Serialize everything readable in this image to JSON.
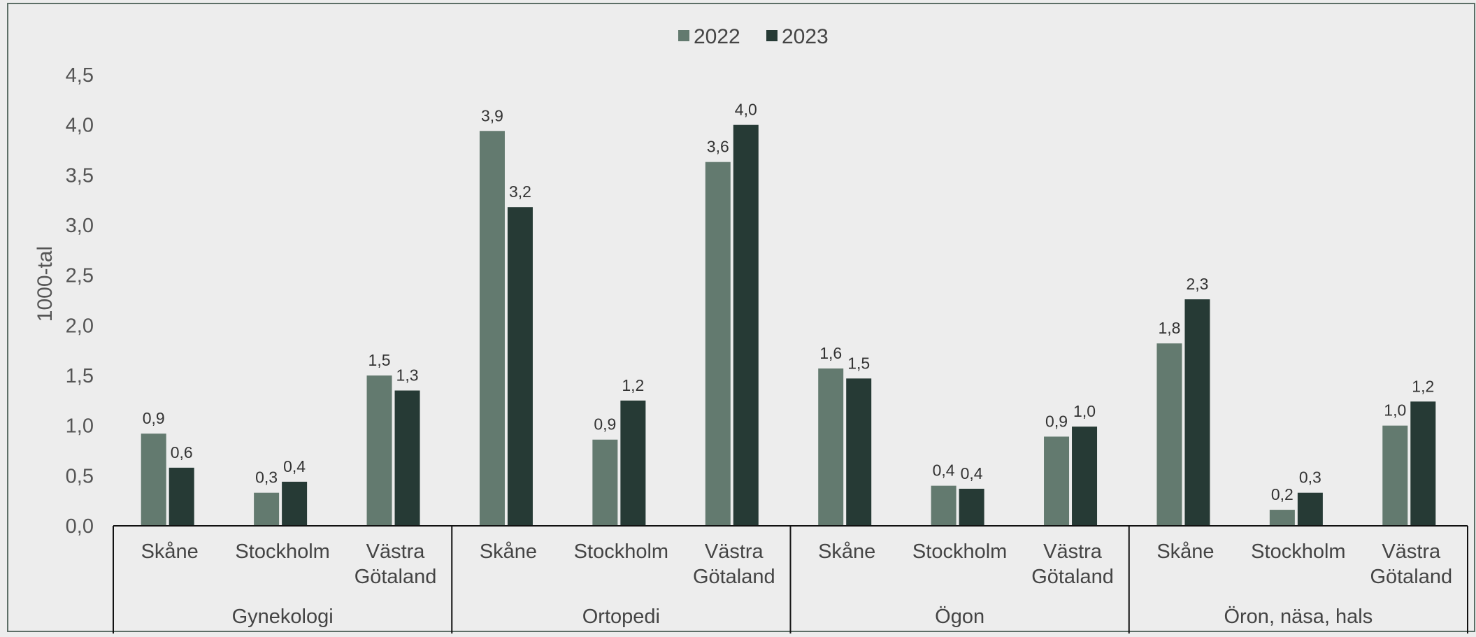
{
  "chart_data": {
    "type": "bar",
    "title": "",
    "xlabel": "",
    "ylabel": "1000-tal",
    "ylim": [
      0,
      4.5
    ],
    "yticks": [
      "0,0",
      "0,5",
      "1,0",
      "1,5",
      "2,0",
      "2,5",
      "3,0",
      "3,5",
      "4,0",
      "4,5"
    ],
    "legend_position": "top-center",
    "grid": false,
    "groups": [
      {
        "name": "Gynekologi",
        "categories": [
          "Skåne",
          "Stockholm",
          "Västra Götaland"
        ]
      },
      {
        "name": "Ortopedi",
        "categories": [
          "Skåne",
          "Stockholm",
          "Västra Götaland"
        ]
      },
      {
        "name": "Ögon",
        "categories": [
          "Skåne",
          "Stockholm",
          "Västra Götaland"
        ]
      },
      {
        "name": "Öron, näsa, hals",
        "categories": [
          "Skåne",
          "Stockholm",
          "Västra Götaland"
        ]
      }
    ],
    "series": [
      {
        "name": "2022",
        "color": "#637a6f",
        "values": [
          0.92,
          0.33,
          1.5,
          3.94,
          0.86,
          3.63,
          1.57,
          0.4,
          0.89,
          1.82,
          0.16,
          1.0
        ],
        "labels": [
          "0,9",
          "0,3",
          "1,5",
          "3,9",
          "0,9",
          "3,6",
          "1,6",
          "0,4",
          "0,9",
          "1,8",
          "0,2",
          "1,0"
        ]
      },
      {
        "name": "2023",
        "color": "#263a35",
        "values": [
          0.58,
          0.44,
          1.35,
          3.18,
          1.25,
          4.0,
          1.47,
          0.37,
          0.99,
          2.26,
          0.33,
          1.24
        ],
        "labels": [
          "0,6",
          "0,4",
          "1,3",
          "3,2",
          "1,2",
          "4,0",
          "1,5",
          "0,4",
          "1,0",
          "2,3",
          "0,3",
          "1,2"
        ]
      }
    ]
  }
}
